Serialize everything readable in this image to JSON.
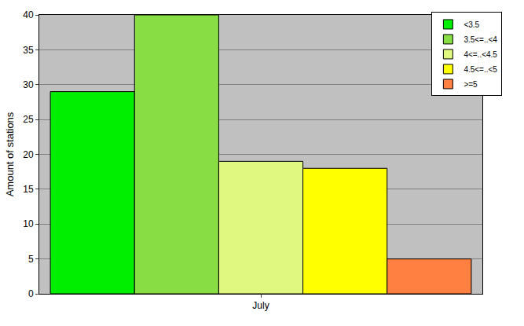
{
  "chart_data": {
    "type": "bar",
    "y_label": "Amount of stations",
    "categories": [
      "July"
    ],
    "series": [
      {
        "name": "<3.5",
        "color": "#00ee00",
        "values": [
          29
        ]
      },
      {
        "name": "3.5<=..<4",
        "color": "#88dd44",
        "values": [
          40
        ]
      },
      {
        "name": "4<=..<4.5",
        "color": "#e0f880",
        "values": [
          19
        ]
      },
      {
        "name": "4.5<=..<5",
        "color": "#ffff00",
        "values": [
          18
        ]
      },
      {
        "name": ">=5",
        "color": "#ff8040",
        "values": [
          5
        ]
      }
    ],
    "ylim": [
      0,
      40
    ],
    "yticks": [
      0,
      5,
      10,
      15,
      20,
      25,
      30,
      35,
      40
    ],
    "grid": true,
    "legend": "top right"
  }
}
